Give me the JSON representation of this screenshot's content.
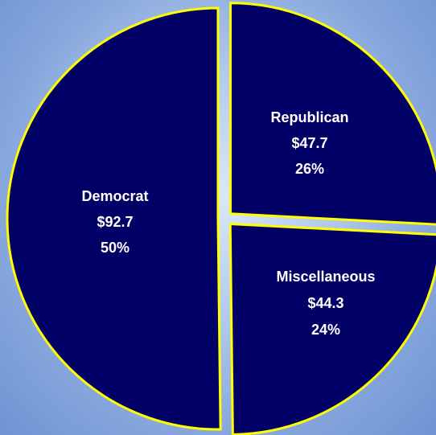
{
  "chart_data": {
    "type": "pie",
    "title": "",
    "slices": [
      {
        "label": "Democrat",
        "value_text": "$92.7",
        "value": 92.7,
        "percent_text": "50%",
        "percent": 50
      },
      {
        "label": "Republican",
        "value_text": "$47.7",
        "value": 47.7,
        "percent_text": "26%",
        "percent": 26
      },
      {
        "label": "Miscellaneous",
        "value_text": "$44.3",
        "value": 44.3,
        "percent_text": "24%",
        "percent": 24
      }
    ],
    "exploded": true,
    "legend": "none",
    "colors": {
      "fill": "#000066",
      "stroke": "#ffff00",
      "label": "#ffffff"
    }
  }
}
